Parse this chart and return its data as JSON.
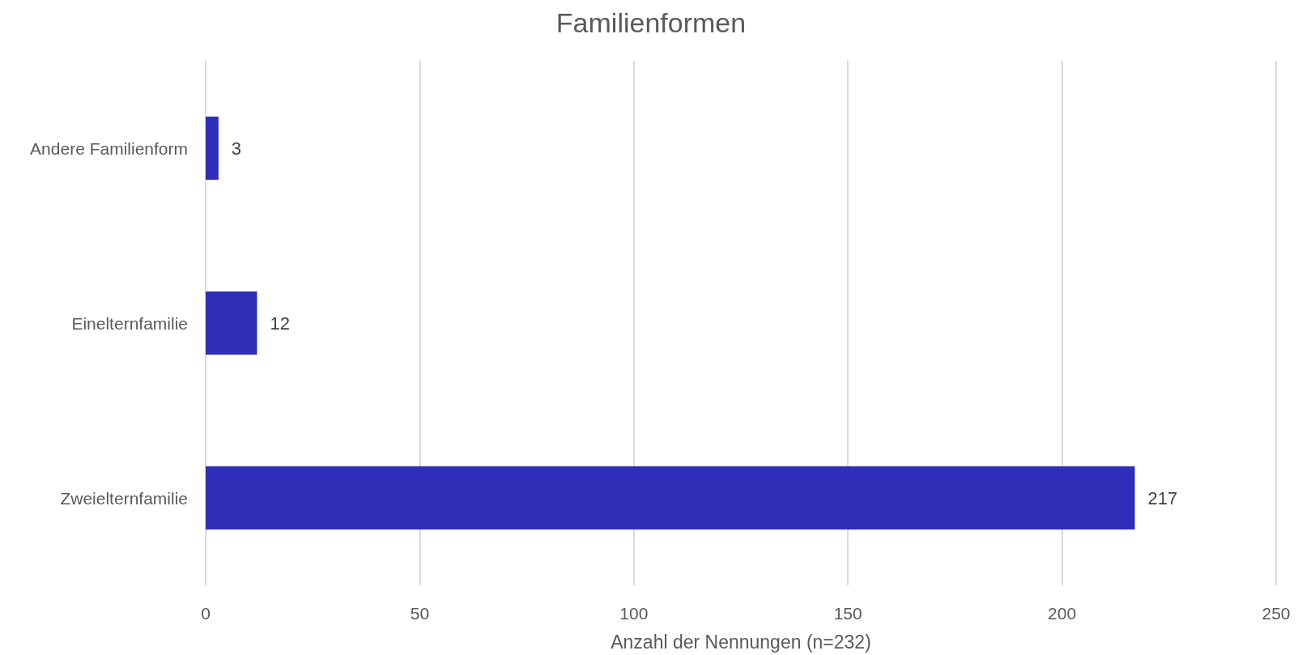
{
  "chart_data": {
    "type": "bar",
    "orientation": "horizontal",
    "title": "Familienformen",
    "xlabel": "Anzahl der Nennungen (n=232)",
    "categories": [
      "Andere Familienform",
      "Einelternfamilie",
      "Zweielternfamilie"
    ],
    "values": [
      3,
      12,
      217
    ],
    "color": "#2e2eb8",
    "xlim": [
      0,
      250
    ],
    "xticks": [
      0,
      50,
      100,
      150,
      200,
      250
    ],
    "grid": "x",
    "data_labels": true
  }
}
